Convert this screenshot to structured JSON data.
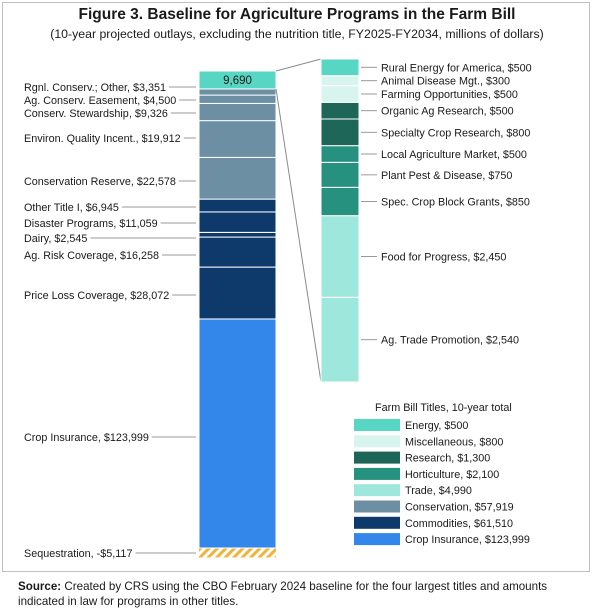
{
  "figure": {
    "title": "Figure 3. Baseline for Agriculture Programs in the Farm Bill",
    "subtitle": "(10-year projected outlays, excluding the nutrition title, FY2025-FY2034, millions of dollars)",
    "source_label": "Source:",
    "source_text": "Created by CRS using the CBO February 2024 baseline for the four largest titles and amounts indicated in law for programs in other titles."
  },
  "colors": {
    "energy": "#56d6c3",
    "miscellaneous": "#d8f4ef",
    "research": "#1e6657",
    "horticulture": "#279180",
    "trade": "#9ee7dc",
    "conservation": "#6c8fa4",
    "commodities": "#0e3a6b",
    "crop_insurance": "#3387ea",
    "sequestration": "#f0b43a"
  },
  "chart_data": {
    "type": "bar",
    "stacked": true,
    "units": "millions of dollars",
    "main_bar": {
      "total_label": "9,690",
      "segments": [
        {
          "label": "Sequestration, -$5,117",
          "value": -5117,
          "category": "sequestration"
        },
        {
          "label": "Crop Insurance, $123,999",
          "value": 123999,
          "category": "crop_insurance"
        },
        {
          "label": "Price Loss Coverage, $28,072",
          "value": 28072,
          "category": "commodities"
        },
        {
          "label": "Ag. Risk Coverage, $16,258",
          "value": 16258,
          "category": "commodities"
        },
        {
          "label": "Dairy, $2,545",
          "value": 2545,
          "category": "commodities"
        },
        {
          "label": "Disaster Programs, $11,059",
          "value": 11059,
          "category": "commodities"
        },
        {
          "label": "Other Title I, $6,945",
          "value": 6945,
          "category": "commodities"
        },
        {
          "label": "Conservation Reserve, $22,578",
          "value": 22578,
          "category": "conservation"
        },
        {
          "label": "Environ. Quality Incent., $19,912",
          "value": 19912,
          "category": "conservation"
        },
        {
          "label": "Conserv. Stewardship, $9,326",
          "value": 9326,
          "category": "conservation"
        },
        {
          "label": "Ag. Conserv. Easement, $4,500",
          "value": 4500,
          "category": "conservation"
        },
        {
          "label": "Rgnl. Conserv.; Other, $3,351",
          "value": 3351,
          "category": "conservation"
        },
        {
          "label": "",
          "value": 9690,
          "category": "other_titles"
        }
      ]
    },
    "detail_bar": {
      "segments": [
        {
          "label": "Ag. Trade Promotion, $2,540",
          "value": 2540,
          "category": "trade"
        },
        {
          "label": "Food for Progress, $2,450",
          "value": 2450,
          "category": "trade"
        },
        {
          "label": "Spec. Crop Block Grants, $850",
          "value": 850,
          "category": "horticulture"
        },
        {
          "label": "Plant Pest & Disease, $750",
          "value": 750,
          "category": "horticulture"
        },
        {
          "label": "Local Agriculture Market, $500",
          "value": 500,
          "category": "horticulture"
        },
        {
          "label": "Specialty Crop Research, $800",
          "value": 800,
          "category": "research"
        },
        {
          "label": "Organic Ag Research, $500",
          "value": 500,
          "category": "research"
        },
        {
          "label": "Farming Opportunities, $500",
          "value": 500,
          "category": "miscellaneous"
        },
        {
          "label": "Animal Disease Mgt., $300",
          "value": 300,
          "category": "miscellaneous"
        },
        {
          "label": "Rural Energy for America, $500",
          "value": 500,
          "category": "energy"
        }
      ]
    },
    "legend": {
      "title": "Farm Bill Titles, 10-year total",
      "placement": "bottom-right",
      "entries": [
        {
          "label": "Energy, $500",
          "category": "energy"
        },
        {
          "label": "Miscellaneous, $800",
          "category": "miscellaneous"
        },
        {
          "label": "Research, $1,300",
          "category": "research"
        },
        {
          "label": "Horticulture, $2,100",
          "category": "horticulture"
        },
        {
          "label": "Trade, $4,990",
          "category": "trade"
        },
        {
          "label": "Conservation, $57,919",
          "category": "conservation"
        },
        {
          "label": "Commodities, $61,510",
          "category": "commodities"
        },
        {
          "label": "Crop Insurance, $123,999",
          "category": "crop_insurance"
        }
      ]
    }
  }
}
